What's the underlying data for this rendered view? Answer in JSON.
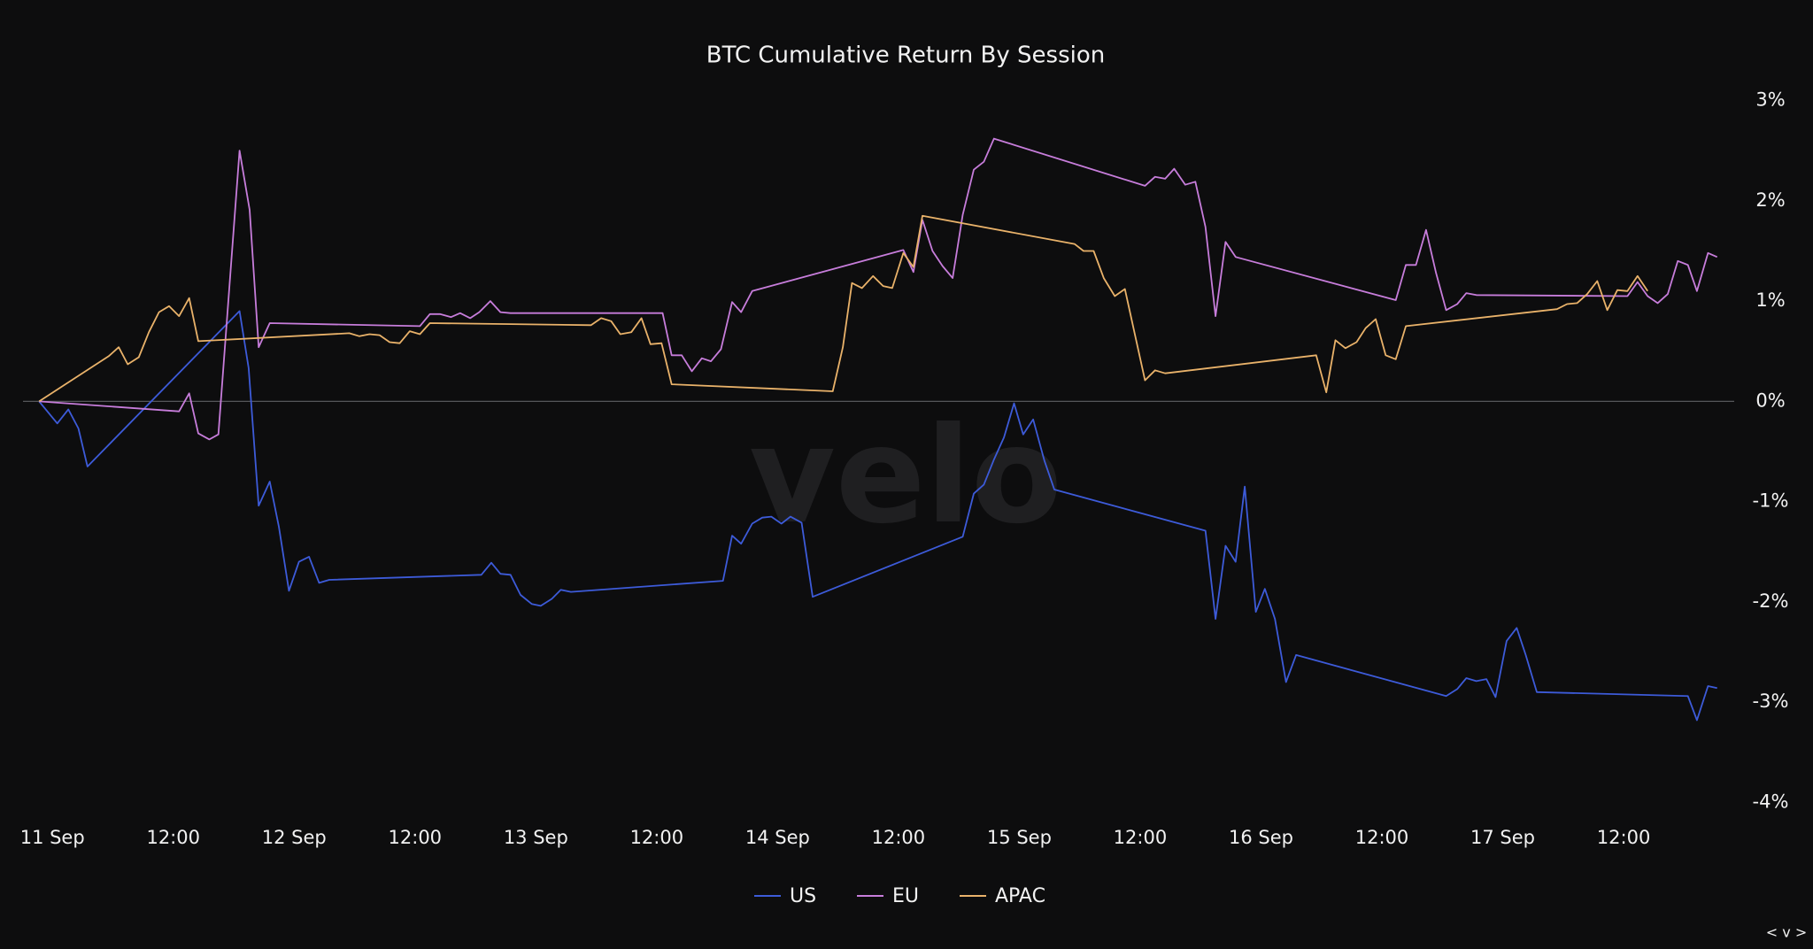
{
  "chart_data": {
    "type": "line",
    "title": "BTC Cumulative Return By Session",
    "watermark": "velo",
    "nav": "< v >",
    "xlim": [
      -1.6,
      168.3
    ],
    "xticks": [
      {
        "value": 0,
        "label": "11 Sep"
      },
      {
        "value": 12,
        "label": "12:00"
      },
      {
        "value": 24,
        "label": "12 Sep"
      },
      {
        "value": 36,
        "label": "12:00"
      },
      {
        "value": 48,
        "label": "13 Sep"
      },
      {
        "value": 60,
        "label": "12:00"
      },
      {
        "value": 72,
        "label": "14 Sep"
      },
      {
        "value": 84,
        "label": "12:00"
      },
      {
        "value": 96,
        "label": "15 Sep"
      },
      {
        "value": 108,
        "label": "12:00"
      },
      {
        "value": 120,
        "label": "16 Sep"
      },
      {
        "value": 132,
        "label": "12:00"
      },
      {
        "value": 144,
        "label": "17 Sep"
      },
      {
        "value": 156,
        "label": "12:00"
      }
    ],
    "ylim": [
      -4,
      3
    ],
    "yticks": [
      {
        "value": 3,
        "label": "3%"
      },
      {
        "value": 2,
        "label": "2%"
      },
      {
        "value": 1,
        "label": "1%"
      },
      {
        "value": 0,
        "label": "0%"
      },
      {
        "value": -1,
        "label": "-1%"
      },
      {
        "value": -2,
        "label": "-2%"
      },
      {
        "value": -3,
        "label": "-3%"
      },
      {
        "value": -4,
        "label": "-4%"
      }
    ],
    "series": [
      {
        "name": "US",
        "color": "#3d5bd9",
        "x": [
          0,
          1.8,
          2.9,
          3.9,
          4.8,
          19.9,
          20.8,
          21.8,
          22.9,
          23.8,
          24.8,
          25.8,
          26.8,
          27.8,
          28.8,
          43.9,
          44.9,
          45.8,
          46.8,
          47.8,
          48.9,
          49.8,
          50.9,
          51.8,
          52.8,
          67.9,
          68.8,
          69.7,
          70.8,
          71.8,
          72.7,
          73.7,
          74.6,
          75.7,
          76.8,
          91.7,
          92.8,
          93.8,
          94.8,
          95.8,
          96.8,
          97.7,
          98.7,
          99.8,
          100.8,
          115.8,
          116.8,
          117.8,
          118.8,
          119.7,
          120.8,
          121.7,
          122.7,
          123.8,
          124.8,
          139.7,
          140.8,
          141.7,
          142.7,
          143.7,
          144.6,
          145.7,
          146.7,
          147.6,
          148.7,
          163.7,
          164.6,
          165.7,
          166.6
        ],
        "values": [
          0,
          -0.22,
          -0.08,
          -0.27,
          -0.65,
          0.9,
          0.33,
          -1.04,
          -0.8,
          -1.25,
          -1.89,
          -1.6,
          -1.55,
          -1.81,
          -1.78,
          -1.73,
          -1.61,
          -1.72,
          -1.73,
          -1.93,
          -2.02,
          -2.04,
          -1.97,
          -1.88,
          -1.9,
          -1.79,
          -1.34,
          -1.42,
          -1.22,
          -1.16,
          -1.15,
          -1.22,
          -1.15,
          -1.21,
          -1.95,
          -1.35,
          -0.92,
          -0.83,
          -0.58,
          -0.36,
          -0.02,
          -0.33,
          -0.18,
          -0.59,
          -0.88,
          -1.29,
          -2.17,
          -1.44,
          -1.6,
          -0.85,
          -2.1,
          -1.87,
          -2.17,
          -2.8,
          -2.53,
          -2.94,
          -2.87,
          -2.76,
          -2.79,
          -2.77,
          -2.95,
          -2.39,
          -2.26,
          -2.53,
          -2.9,
          -2.94,
          -3.18,
          -2.84,
          -2.86
        ]
      },
      {
        "name": "EU",
        "color": "#c77ddb",
        "x": [
          0,
          13.9,
          14.9,
          15.8,
          16.9,
          17.8,
          19.9,
          20.9,
          21.8,
          22.9,
          37.8,
          38.8,
          39.8,
          40.9,
          41.8,
          42.8,
          43.7,
          44.8,
          45.8,
          46.8,
          61.9,
          62.8,
          63.8,
          64.8,
          65.8,
          66.7,
          67.7,
          68.8,
          69.7,
          70.8,
          85.8,
          86.8,
          87.7,
          88.7,
          89.7,
          90.7,
          91.7,
          92.8,
          93.8,
          94.8,
          109.8,
          110.8,
          111.8,
          112.7,
          113.8,
          114.8,
          115.8,
          116.8,
          117.8,
          118.8,
          134.7,
          135.7,
          136.7,
          137.7,
          138.7,
          139.7,
          140.8,
          141.7,
          142.7,
          157.7,
          158.7,
          159.7,
          160.7,
          161.7,
          162.7,
          163.7,
          164.6,
          165.7,
          166.6
        ],
        "values": [
          0,
          -0.1,
          0.08,
          -0.32,
          -0.38,
          -0.33,
          2.5,
          1.91,
          0.54,
          0.78,
          0.75,
          0.87,
          0.87,
          0.84,
          0.88,
          0.83,
          0.89,
          1.0,
          0.89,
          0.88,
          0.88,
          0.46,
          0.46,
          0.3,
          0.43,
          0.4,
          0.52,
          0.99,
          0.89,
          1.1,
          1.51,
          1.29,
          1.81,
          1.5,
          1.35,
          1.23,
          1.86,
          2.31,
          2.39,
          2.62,
          2.15,
          2.24,
          2.22,
          2.32,
          2.16,
          2.19,
          1.74,
          0.85,
          1.59,
          1.44,
          1.01,
          1.36,
          1.36,
          1.71,
          1.28,
          0.91,
          0.97,
          1.08,
          1.06,
          1.05,
          1.19,
          1.05,
          0.98,
          1.07,
          1.4,
          1.36,
          1.1,
          1.48,
          1.44
        ]
      },
      {
        "name": "APAC",
        "color": "#e9b26a",
        "x": [
          0,
          6.9,
          7.9,
          8.8,
          9.9,
          10.9,
          11.9,
          12.9,
          13.9,
          14.9,
          15.8,
          30.8,
          31.8,
          32.8,
          33.8,
          34.8,
          35.8,
          36.8,
          37.8,
          38.8,
          54.8,
          55.8,
          56.8,
          57.7,
          58.8,
          59.8,
          60.7,
          61.8,
          62.8,
          78.8,
          79.8,
          80.7,
          81.7,
          82.8,
          83.8,
          84.7,
          85.8,
          86.8,
          87.7,
          102.8,
          103.7,
          104.7,
          105.7,
          106.8,
          107.8,
          109.8,
          110.8,
          111.8,
          126.8,
          127.8,
          128.7,
          129.7,
          130.8,
          131.7,
          132.7,
          133.7,
          134.7,
          135.7,
          150.7,
          151.7,
          152.7,
          153.7,
          154.7,
          155.7,
          156.7,
          157.7,
          158.7,
          159.7
        ],
        "values": [
          0,
          0.45,
          0.54,
          0.37,
          0.44,
          0.69,
          0.89,
          0.95,
          0.85,
          1.03,
          0.6,
          0.68,
          0.65,
          0.67,
          0.66,
          0.59,
          0.58,
          0.7,
          0.67,
          0.78,
          0.76,
          0.83,
          0.8,
          0.67,
          0.69,
          0.83,
          0.57,
          0.58,
          0.17,
          0.1,
          0.54,
          1.18,
          1.13,
          1.25,
          1.15,
          1.13,
          1.48,
          1.34,
          1.85,
          1.57,
          1.5,
          1.5,
          1.23,
          1.05,
          1.12,
          0.21,
          0.31,
          0.28,
          0.46,
          0.09,
          0.61,
          0.53,
          0.59,
          0.73,
          0.82,
          0.46,
          0.42,
          0.75,
          0.92,
          0.97,
          0.98,
          1.07,
          1.2,
          0.91,
          1.11,
          1.1,
          1.25,
          1.1
        ]
      }
    ]
  }
}
